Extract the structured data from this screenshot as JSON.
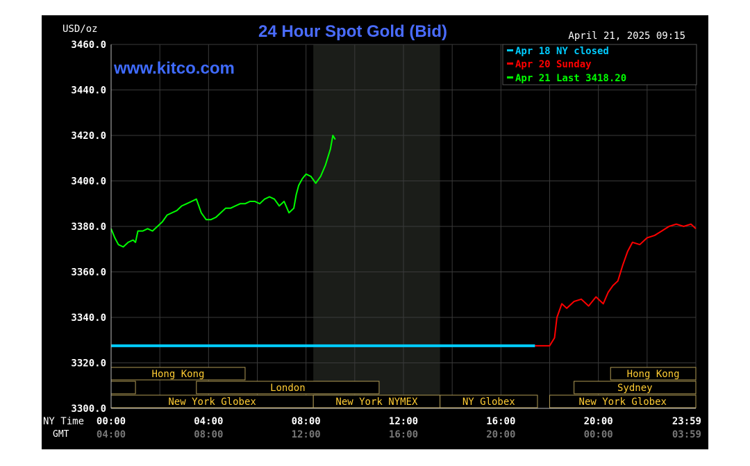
{
  "chart_data": {
    "type": "line",
    "title": "24 Hour Spot Gold (Bid)",
    "watermark": "www.kitco.com",
    "timestamp": "April 21, 2025 09:15",
    "ylabel": "USD/oz",
    "ylim": [
      3300,
      3460
    ],
    "ytick_labels": [
      "3460.0",
      "3440.0",
      "3420.0",
      "3400.0",
      "3380.0",
      "3360.0",
      "3340.0",
      "3320.0",
      "3300.0"
    ],
    "x_unit": "hours since 00:00 NY time",
    "xlim": [
      0,
      24
    ],
    "x_ticks_ny": {
      "label": "NY Time",
      "ticks": [
        "00:00",
        "04:00",
        "08:00",
        "12:00",
        "16:00",
        "20:00",
        "23:59"
      ]
    },
    "x_ticks_gmt": {
      "label": "GMT",
      "ticks": [
        "04:00",
        "08:00",
        "12:00",
        "16:00",
        "20:00",
        "00:00",
        "03:59"
      ]
    },
    "shaded_range": [
      8.3,
      13.5
    ],
    "grid": true,
    "legend_position": "top-right",
    "legend": [
      {
        "text": "Apr 18 NY closed",
        "color": "#00ccff"
      },
      {
        "text": "Apr 20 Sunday",
        "color": "#ff0000"
      },
      {
        "text": "Apr 21 Last 3418.20",
        "color": "#00ff00"
      }
    ],
    "series": [
      {
        "name": "Apr 18 NY closed",
        "color": "#00ccff",
        "x": [
          0,
          17.4
        ],
        "y": [
          3327.5,
          3327.5
        ]
      },
      {
        "name": "Apr 20 Sunday",
        "color": "#ff0000",
        "x": [
          17.4,
          18.0,
          18.2,
          18.3,
          18.5,
          18.7,
          19.0,
          19.3,
          19.6,
          19.9,
          20.2,
          20.4,
          20.6,
          20.8,
          21.0,
          21.2,
          21.4,
          21.7,
          22.0,
          22.3,
          22.6,
          22.9,
          23.2,
          23.5,
          23.8,
          24.0
        ],
        "y": [
          3327.5,
          3327.5,
          3331,
          3340,
          3346,
          3344,
          3347,
          3348,
          3345,
          3349,
          3346,
          3351,
          3354,
          3356,
          3363,
          3369,
          3373,
          3372,
          3375,
          3376,
          3378,
          3380,
          3381,
          3380,
          3381,
          3379
        ]
      },
      {
        "name": "Apr 21 Last 3418.20",
        "color": "#00ff00",
        "x": [
          0,
          0.15,
          0.3,
          0.5,
          0.7,
          0.9,
          1.0,
          1.1,
          1.3,
          1.5,
          1.7,
          1.9,
          2.1,
          2.3,
          2.5,
          2.7,
          2.9,
          3.1,
          3.3,
          3.5,
          3.7,
          3.9,
          4.1,
          4.3,
          4.5,
          4.7,
          4.9,
          5.1,
          5.3,
          5.5,
          5.7,
          5.9,
          6.1,
          6.3,
          6.5,
          6.7,
          6.9,
          7.1,
          7.3,
          7.5,
          7.6,
          7.7,
          7.85,
          8.0,
          8.2,
          8.4,
          8.6,
          8.8,
          9.0,
          9.1,
          9.2
        ],
        "y": [
          3379,
          3375,
          3372,
          3371,
          3373,
          3374,
          3373,
          3378,
          3378,
          3379,
          3378,
          3380,
          3382,
          3385,
          3386,
          3387,
          3389,
          3390,
          3391,
          3392,
          3386,
          3383,
          3383,
          3384,
          3386,
          3388,
          3388,
          3389,
          3390,
          3390,
          3391,
          3391,
          3390,
          3392,
          3393,
          3392,
          3389,
          3391,
          3386,
          3388,
          3394,
          3398,
          3401,
          3403,
          3402,
          3399,
          3402,
          3407,
          3414,
          3420,
          3418.2
        ]
      }
    ]
  },
  "market_sessions": [
    {
      "label": "Hong Kong",
      "row": 0,
      "ranges": [
        [
          0,
          5.5
        ],
        [
          20.5,
          24
        ]
      ]
    },
    {
      "label": "London",
      "row": 1,
      "ranges": [
        [
          0,
          1.0
        ],
        [
          3.5,
          11.0
        ]
      ]
    },
    {
      "label": "Sydney",
      "row": 1,
      "ranges": [
        [
          19,
          24
        ]
      ]
    },
    {
      "label": "New York Globex",
      "row": 2,
      "ranges": [
        [
          0,
          8.3
        ],
        [
          18,
          24
        ]
      ]
    },
    {
      "label": "New York NYMEX",
      "row": 2,
      "ranges": [
        [
          8.3,
          13.5
        ]
      ]
    },
    {
      "label": "NY Globex",
      "row": 2,
      "ranges": [
        [
          13.5,
          17.5
        ]
      ]
    }
  ]
}
